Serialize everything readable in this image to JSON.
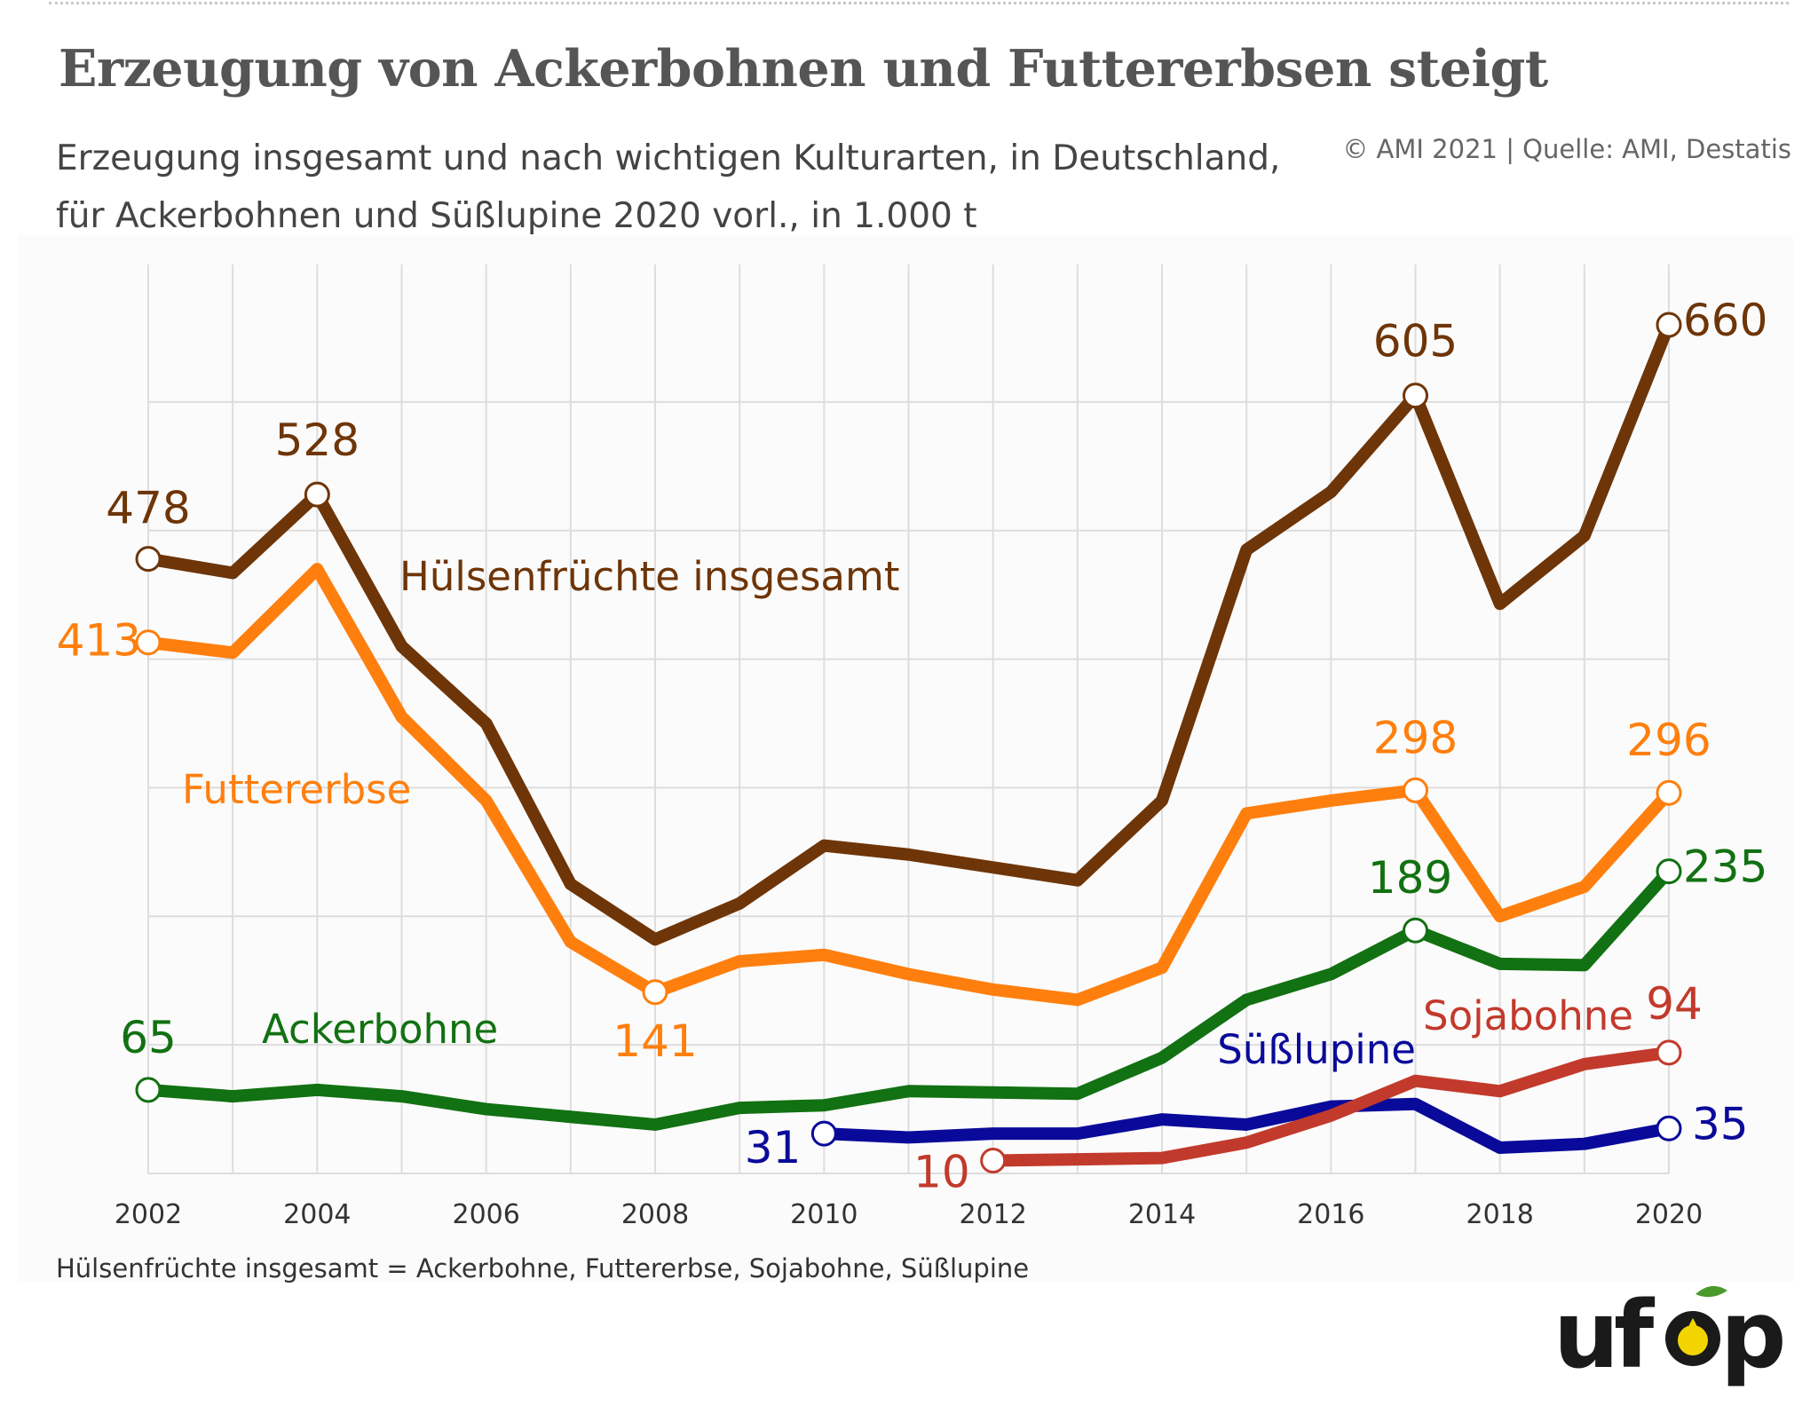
{
  "title": "Erzeugung von Ackerbohnen und Futtererbsen steigt",
  "subtitle": "Erzeugung insgesamt und nach wichtigen Kulturarten, in Deutschland, für Ackerbohnen und Süßlupine 2020 vorl., in 1.000 t",
  "source": "© AMI 2021 | Quelle: AMI, Destatis",
  "footnote": "Hülsenfrüchte insgesamt = Ackerbohne, Futtererbse, Sojabohne, Süßlupine",
  "logo": {
    "text": "ufop",
    "colors": {
      "text": "#1a1a1a",
      "drop": "#f2d400",
      "leaf": "#4a9a2a"
    }
  },
  "chart_data": {
    "type": "line",
    "x_tick_labels": [
      "2002",
      "2004",
      "2006",
      "2008",
      "2010",
      "2012",
      "2014",
      "2016",
      "2018",
      "2020"
    ],
    "ylim": [
      0,
      700
    ],
    "xlim": [
      2002,
      2020
    ],
    "grid": true,
    "series": [
      {
        "name": "Hülsenfrüchte insgesamt",
        "color": "#6e3508",
        "x": [
          2002,
          2003,
          2004,
          2005,
          2006,
          2007,
          2008,
          2009,
          2010,
          2011,
          2012,
          2013,
          2014,
          2015,
          2016,
          2017,
          2018,
          2019,
          2020
        ],
        "values": [
          478,
          467,
          528,
          410,
          350,
          225,
          182,
          210,
          255,
          248,
          238,
          228,
          290,
          485,
          530,
          605,
          443,
          496,
          660
        ],
        "labels": [
          {
            "x": 2002,
            "text": "478"
          },
          {
            "x": 2004,
            "text": "528"
          },
          {
            "x": 2017,
            "text": "605"
          },
          {
            "x": 2020,
            "text": "660"
          }
        ]
      },
      {
        "name": "Futtererbse",
        "color": "#ff7f0e",
        "x": [
          2002,
          2003,
          2004,
          2005,
          2006,
          2007,
          2008,
          2009,
          2010,
          2011,
          2012,
          2013,
          2014,
          2015,
          2016,
          2017,
          2018,
          2019,
          2020
        ],
        "values": [
          413,
          405,
          470,
          355,
          290,
          180,
          141,
          165,
          170,
          155,
          143,
          135,
          160,
          280,
          290,
          298,
          200,
          223,
          296
        ],
        "labels": [
          {
            "x": 2002,
            "text": "413"
          },
          {
            "x": 2008,
            "text": "141"
          },
          {
            "x": 2017,
            "text": "298"
          },
          {
            "x": 2020,
            "text": "296"
          }
        ]
      },
      {
        "name": "Ackerbohne",
        "color": "#127112",
        "x": [
          2002,
          2003,
          2004,
          2005,
          2006,
          2007,
          2008,
          2009,
          2010,
          2011,
          2012,
          2013,
          2014,
          2015,
          2016,
          2017,
          2018,
          2019,
          2020
        ],
        "values": [
          65,
          60,
          65,
          60,
          50,
          44,
          38,
          51,
          53,
          64,
          63,
          62,
          90,
          135,
          155,
          189,
          163,
          162,
          235
        ],
        "labels": [
          {
            "x": 2002,
            "text": "65"
          },
          {
            "x": 2017,
            "text": "189"
          },
          {
            "x": 2020,
            "text": "235"
          }
        ]
      },
      {
        "name": "Süßlupine",
        "color": "#0a0a9a",
        "x": [
          2010,
          2011,
          2012,
          2013,
          2014,
          2015,
          2016,
          2017,
          2018,
          2019,
          2020
        ],
        "values": [
          31,
          28,
          31,
          31,
          42,
          38,
          52,
          54,
          20,
          23,
          35
        ],
        "labels": [
          {
            "x": 2010,
            "text": "31"
          },
          {
            "x": 2020,
            "text": "35"
          }
        ]
      },
      {
        "name": "Sojabohne",
        "color": "#c23a2c",
        "x": [
          2012,
          2013,
          2014,
          2015,
          2016,
          2017,
          2018,
          2019,
          2020
        ],
        "values": [
          10,
          11,
          12,
          24,
          45,
          72,
          64,
          85,
          94
        ],
        "labels": [
          {
            "x": 2012,
            "text": "10"
          },
          {
            "x": 2020,
            "text": "94"
          }
        ]
      }
    ]
  }
}
